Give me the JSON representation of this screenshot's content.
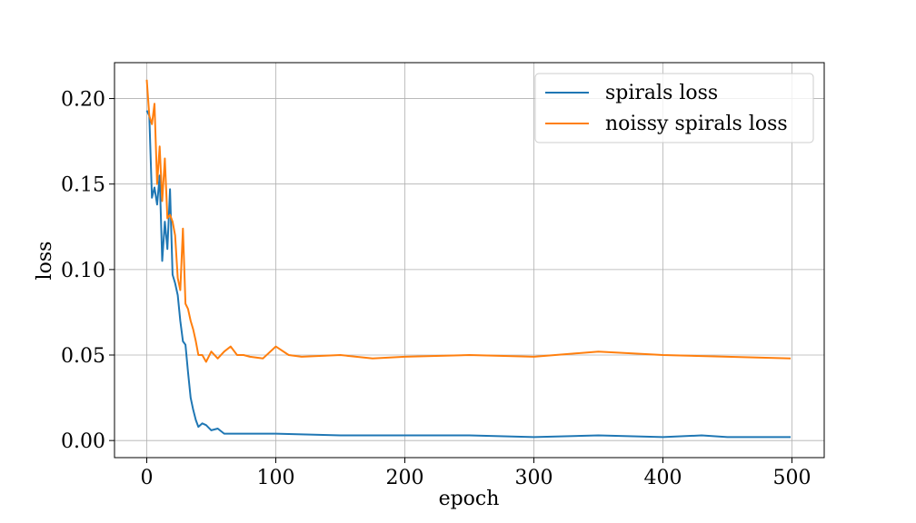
{
  "chart_data": {
    "type": "line",
    "title": "",
    "xlabel": "epoch",
    "ylabel": "loss",
    "xlim": [
      -25,
      525
    ],
    "ylim": [
      -0.01,
      0.221
    ],
    "xticks": [
      0,
      100,
      200,
      300,
      400,
      500
    ],
    "yticks": [
      0.0,
      0.05,
      0.1,
      0.15,
      0.2
    ],
    "xtick_labels": [
      "0",
      "100",
      "200",
      "300",
      "400",
      "500"
    ],
    "ytick_labels": [
      "0.00",
      "0.05",
      "0.10",
      "0.15",
      "0.20"
    ],
    "grid": true,
    "legend_position": "top-right",
    "series": [
      {
        "name": "spirals loss",
        "color": "#1f77b4",
        "x": [
          0,
          2,
          4,
          6,
          8,
          10,
          12,
          14,
          16,
          18,
          20,
          22,
          24,
          26,
          28,
          30,
          32,
          34,
          36,
          38,
          40,
          43,
          46,
          50,
          55,
          60,
          70,
          80,
          100,
          150,
          200,
          250,
          300,
          350,
          400,
          430,
          450,
          499
        ],
        "values": [
          0.193,
          0.19,
          0.142,
          0.148,
          0.138,
          0.155,
          0.105,
          0.128,
          0.112,
          0.147,
          0.097,
          0.092,
          0.085,
          0.07,
          0.058,
          0.056,
          0.04,
          0.025,
          0.018,
          0.012,
          0.008,
          0.01,
          0.009,
          0.006,
          0.007,
          0.004,
          0.004,
          0.004,
          0.004,
          0.003,
          0.003,
          0.003,
          0.002,
          0.003,
          0.002,
          0.003,
          0.002,
          0.002
        ]
      },
      {
        "name": "noissy spirals loss",
        "color": "#ff7f0e",
        "x": [
          0,
          2,
          4,
          6,
          8,
          10,
          12,
          14,
          16,
          18,
          20,
          22,
          24,
          26,
          28,
          30,
          32,
          34,
          36,
          38,
          40,
          43,
          46,
          50,
          55,
          60,
          65,
          70,
          75,
          80,
          90,
          100,
          110,
          120,
          150,
          175,
          200,
          250,
          300,
          350,
          400,
          450,
          499
        ],
        "values": [
          0.211,
          0.19,
          0.185,
          0.197,
          0.15,
          0.172,
          0.14,
          0.165,
          0.13,
          0.132,
          0.128,
          0.12,
          0.095,
          0.088,
          0.124,
          0.08,
          0.077,
          0.07,
          0.065,
          0.058,
          0.05,
          0.05,
          0.046,
          0.052,
          0.048,
          0.052,
          0.055,
          0.05,
          0.05,
          0.049,
          0.048,
          0.055,
          0.05,
          0.049,
          0.05,
          0.048,
          0.049,
          0.05,
          0.049,
          0.052,
          0.05,
          0.049,
          0.048
        ]
      }
    ]
  }
}
